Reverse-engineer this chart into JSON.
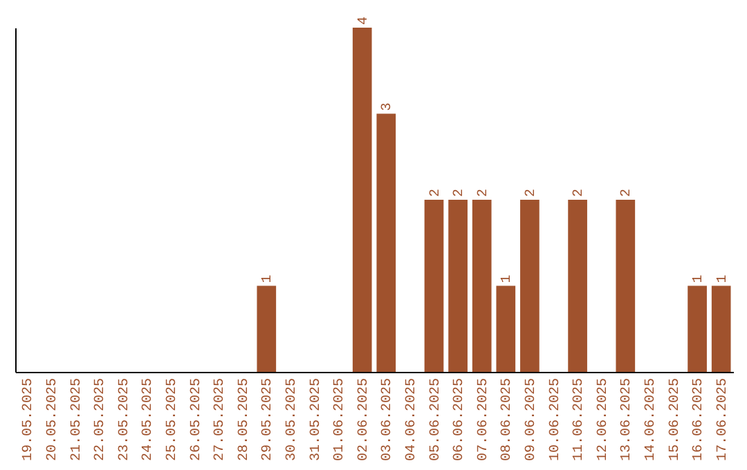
{
  "chart_data": {
    "type": "bar",
    "categories": [
      "19.05.2025",
      "20.05.2025",
      "21.05.2025",
      "22.05.2025",
      "23.05.2025",
      "24.05.2025",
      "25.05.2025",
      "26.05.2025",
      "27.05.2025",
      "28.05.2025",
      "29.05.2025",
      "30.05.2025",
      "31.05.2025",
      "01.06.2025",
      "02.06.2025",
      "03.06.2025",
      "04.06.2025",
      "05.06.2025",
      "06.06.2025",
      "07.06.2025",
      "08.06.2025",
      "09.06.2025",
      "10.06.2025",
      "11.06.2025",
      "12.06.2025",
      "13.06.2025",
      "14.06.2025",
      "15.06.2025",
      "16.06.2025",
      "17.06.2025"
    ],
    "values": [
      null,
      null,
      null,
      null,
      null,
      null,
      null,
      null,
      null,
      null,
      1,
      null,
      null,
      null,
      4,
      3,
      null,
      2,
      2,
      2,
      1,
      2,
      null,
      2,
      null,
      2,
      null,
      null,
      1,
      1
    ],
    "color": "#a0522d",
    "data_labels": true,
    "grid": false,
    "tick_labels": "x"
  }
}
